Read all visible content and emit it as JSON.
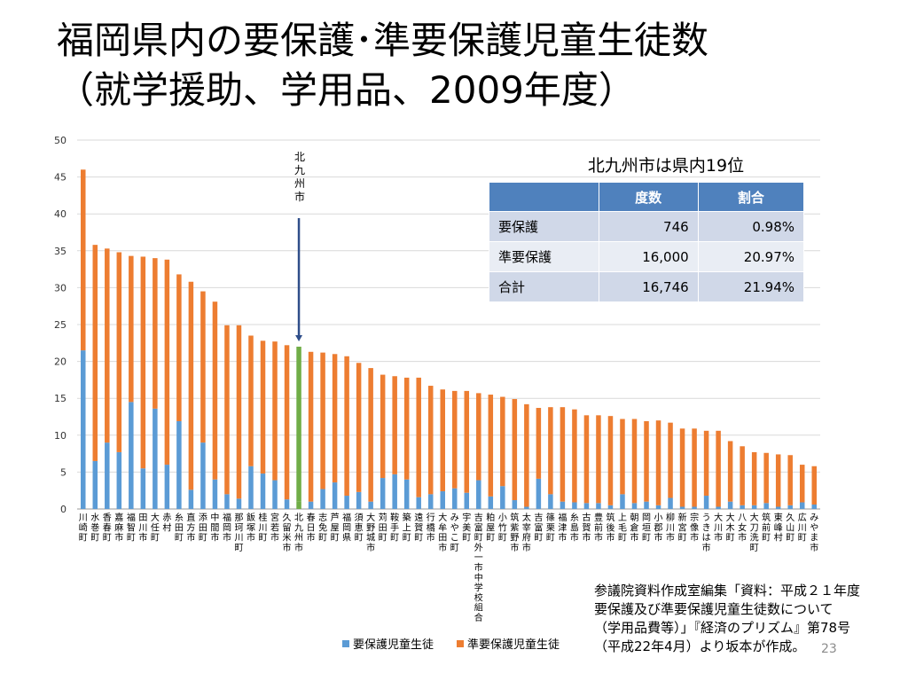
{
  "slide": {
    "title_line1": "福岡県内の要保護･準要保護児童生徒数",
    "title_line2": "（就学援助、学用品、2009年度）",
    "page_number": "23",
    "note_lines": [
      "参議院資料作成室編集「資料：平成２１年度",
      "要保護及び準要保護児童生徒数について",
      "（学用品費等）」『経済のプリズム』第78号",
      "（平成22年4月）より坂本が作成。"
    ]
  },
  "colors": {
    "series_yoho": "#5b9bd5",
    "series_junyoho": "#ed7d31",
    "highlight": "#70ad47",
    "arrow": "#2f4e8a",
    "table_header": "#4f81bd"
  },
  "kitakyushu_table": {
    "caption": "北九州市は県内19位",
    "headers": [
      "",
      "度数",
      "割合"
    ],
    "rows": [
      [
        "要保護",
        "746",
        "0.98%"
      ],
      [
        "準要保護",
        "16,000",
        "20.97%"
      ],
      [
        "合計",
        "16,746",
        "21.94%"
      ]
    ]
  },
  "chart_data": {
    "type": "bar",
    "stacked": true,
    "annotation": "北九州市",
    "highlight_category": "北九州市",
    "ylim": [
      0,
      50
    ],
    "yticks": [
      0,
      5,
      10,
      15,
      20,
      25,
      30,
      35,
      40,
      45,
      50
    ],
    "grid": true,
    "legend_position": "bottom",
    "categories": [
      "川崎町",
      "水巻町",
      "香春町",
      "嘉麻市",
      "福智町",
      "田川市",
      "大任町",
      "赤村",
      "糸田町",
      "直方市",
      "添田町",
      "中間市",
      "福岡市",
      "那珂川町",
      "飯塚市",
      "桂川町",
      "宮若市",
      "久留米市",
      "北九州市",
      "春日市",
      "志免町",
      "芦屋町",
      "福岡県",
      "須恵町",
      "大野城市",
      "苅田町",
      "鞍手町",
      "築上町",
      "遠賀町",
      "行橋市",
      "大牟田市",
      "みやこ町",
      "宇美町",
      "吉富町外一市中学校組合",
      "粕屋町",
      "小竹町",
      "筑紫野市",
      "太宰府市",
      "吉富町",
      "篠栗町",
      "福津市",
      "糸島市",
      "古賀市",
      "豊前市",
      "筑後市",
      "上毛町",
      "朝倉市",
      "岡垣町",
      "小郡市",
      "柳川市",
      "新宮町",
      "宗像市",
      "うきは市",
      "大川市",
      "大木町",
      "八女市",
      "大刀洗町",
      "筑前町",
      "東峰村",
      "久山町",
      "広川町",
      "みやま市"
    ],
    "series": [
      {
        "name": "要保護児童生徒",
        "values": [
          21.5,
          6.5,
          9.0,
          7.7,
          14.5,
          5.5,
          13.6,
          6.0,
          11.9,
          2.6,
          9.0,
          4.0,
          2.0,
          1.4,
          5.8,
          4.8,
          3.9,
          1.3,
          1.0,
          1.0,
          2.7,
          3.6,
          1.8,
          2.3,
          1.0,
          4.2,
          4.7,
          4.0,
          1.6,
          2.0,
          2.4,
          2.8,
          2.2,
          3.9,
          1.7,
          3.1,
          1.2,
          0.3,
          4.1,
          2.0,
          1.0,
          0.9,
          0.8,
          0.8,
          0.5,
          2.0,
          0.8,
          1.0,
          0.5,
          1.5,
          0.3,
          0.3,
          1.8,
          0.3,
          1.0,
          0.5,
          0.5,
          0.8,
          0.3,
          0.5,
          0.9,
          0.6
        ]
      },
      {
        "name": "準要保護児童生徒",
        "values": [
          24.5,
          29.3,
          26.3,
          27.1,
          19.8,
          28.7,
          20.4,
          27.8,
          19.9,
          28.2,
          20.5,
          24.1,
          22.9,
          23.5,
          17.7,
          18.0,
          18.8,
          20.9,
          21.0,
          20.3,
          18.5,
          17.4,
          18.9,
          17.5,
          18.1,
          14.0,
          13.3,
          13.8,
          16.2,
          14.7,
          13.8,
          13.2,
          13.8,
          11.8,
          13.8,
          12.1,
          13.7,
          13.9,
          9.6,
          11.8,
          12.8,
          12.6,
          11.9,
          11.9,
          12.1,
          10.2,
          11.4,
          10.9,
          11.5,
          10.2,
          10.6,
          10.6,
          8.8,
          10.3,
          8.2,
          8.0,
          7.2,
          6.8,
          7.1,
          6.8,
          5.1,
          5.2
        ]
      }
    ]
  }
}
